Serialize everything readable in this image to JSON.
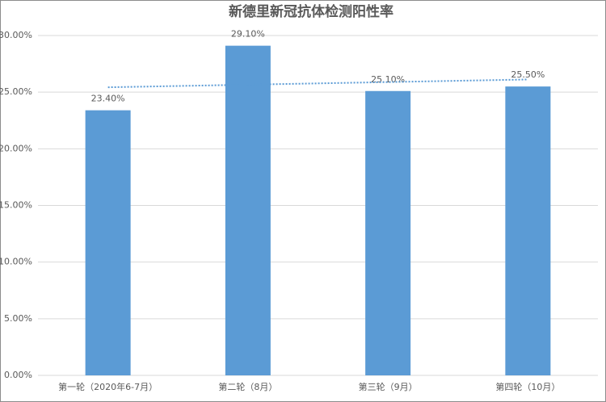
{
  "chart_data": {
    "type": "bar",
    "title": "新德里新冠抗体检测阳性率",
    "categories": [
      "第一轮（2020年6-7月）",
      "第二轮（8月）",
      "第三轮（9月）",
      "第四轮（10月）"
    ],
    "values": [
      23.4,
      29.1,
      25.1,
      25.5
    ],
    "value_labels": [
      "23.40%",
      "29.10%",
      "25.10%",
      "25.50%"
    ],
    "color": "#5b9bd5",
    "ylim": [
      0,
      30
    ],
    "yticks": [
      {
        "value": 0,
        "label": "0.00%"
      },
      {
        "value": 5,
        "label": "5.00%"
      },
      {
        "value": 10,
        "label": "10.00%"
      },
      {
        "value": 15,
        "label": "15.00%"
      },
      {
        "value": 20,
        "label": "20.00%"
      },
      {
        "value": 25,
        "label": "25.00%"
      },
      {
        "value": 30,
        "label": "30.00%"
      }
    ],
    "grid": true,
    "trendline": "linear"
  }
}
